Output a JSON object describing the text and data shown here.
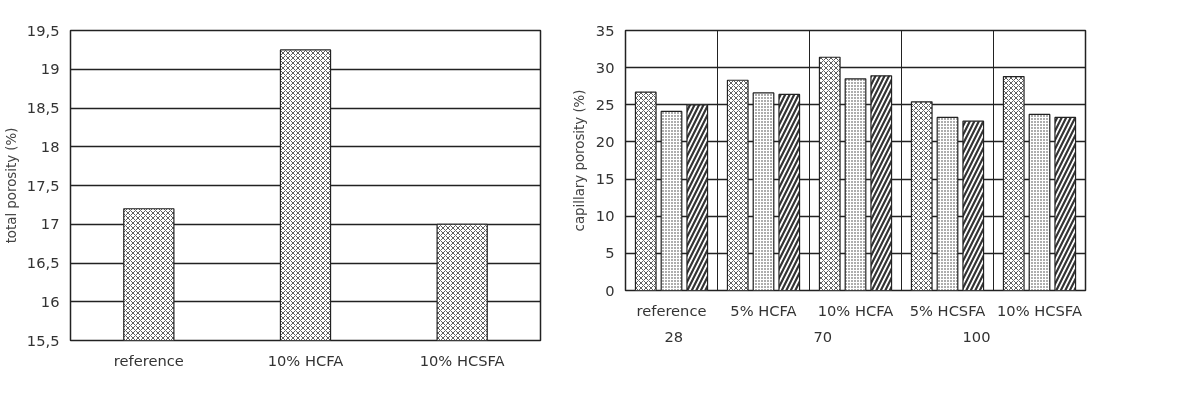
{
  "chart_data": [
    {
      "type": "bar",
      "ylabel": "total porosity (%)",
      "categories": [
        "reference",
        "10% HCFA",
        "10% HCSFA"
      ],
      "series": [
        {
          "color": "#ffffff",
          "values": [
            17.2,
            19.25,
            17.0
          ]
        }
      ],
      "ylim": [
        15.5,
        19.5
      ],
      "yticks": [
        {
          "value": 15.5,
          "label": "15,5"
        },
        16,
        {
          "value": 16.5,
          "label": "16,5"
        },
        17,
        {
          "value": 17.5,
          "label": "17,5"
        },
        18,
        {
          "value": 18.5,
          "label": "18,5"
        },
        19,
        {
          "value": 19.5,
          "label": "19,5"
        }
      ],
      "grid": "y",
      "legend": false
    },
    {
      "type": "bar",
      "ylabel": "capillary porosity (%)",
      "categories": [
        "reference",
        "5% HCFA",
        "10% HCFA",
        "5% HCSFA",
        "10% HCSFA"
      ],
      "series": [
        {
          "name": "28",
          "color": "#ffffff",
          "values": [
            26.7,
            28.3,
            31.4,
            25.4,
            28.8
          ]
        },
        {
          "name": "70",
          "color": "#ffffff",
          "values": [
            24.1,
            26.6,
            28.5,
            23.3,
            23.7
          ]
        },
        {
          "name": "100",
          "color": "#ffffff",
          "values": [
            25.0,
            26.4,
            28.9,
            22.8,
            23.3
          ]
        }
      ],
      "ylim": [
        0,
        35
      ],
      "yticks": [
        0,
        5,
        10,
        15,
        20,
        25,
        30,
        35
      ],
      "grid": true,
      "legend": "bottom"
    }
  ]
}
